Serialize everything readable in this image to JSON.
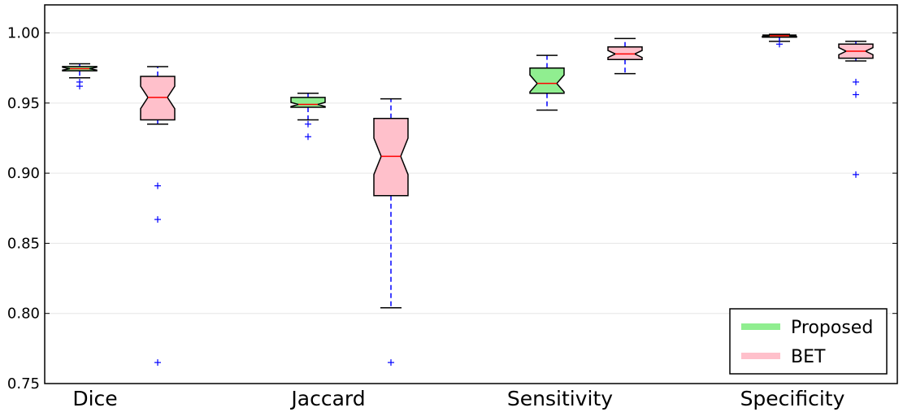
{
  "chart_data": {
    "type": "box",
    "categories": [
      "Dice",
      "Jaccard",
      "Sensitivity",
      "Specificity"
    ],
    "ylim": [
      0.75,
      1.02
    ],
    "yticks": [
      "0.75",
      "0.80",
      "0.85",
      "0.90",
      "0.95",
      "1.00"
    ],
    "grid": true,
    "legend_position": "bottom-right",
    "colors": {
      "Proposed": "#90ee90",
      "BET": "#ffc0cb",
      "median": "#ff0000",
      "whisker": "#0000ff",
      "flier": "#0000ff",
      "grid": "#e6e6e6"
    },
    "series": [
      {
        "name": "Proposed",
        "boxes": [
          {
            "whislo": 0.968,
            "q1": 0.973,
            "med": 0.9745,
            "q3": 0.976,
            "whishi": 0.978,
            "notch": [
              0.9735,
              0.9755
            ],
            "fliers": [
              0.965,
              0.962
            ]
          },
          {
            "whislo": 0.938,
            "q1": 0.947,
            "med": 0.949,
            "q3": 0.954,
            "whishi": 0.957,
            "notch": [
              0.9475,
              0.9505
            ],
            "fliers": [
              0.935,
              0.926
            ]
          },
          {
            "whislo": 0.945,
            "q1": 0.957,
            "med": 0.964,
            "q3": 0.975,
            "whishi": 0.984,
            "notch": [
              0.958,
              0.97
            ],
            "fliers": []
          },
          {
            "whislo": 0.994,
            "q1": 0.997,
            "med": 0.998,
            "q3": 0.9985,
            "whishi": 0.999,
            "notch": [
              0.9975,
              0.9985
            ],
            "fliers": [
              0.992
            ]
          }
        ]
      },
      {
        "name": "BET",
        "boxes": [
          {
            "whislo": 0.935,
            "q1": 0.938,
            "med": 0.954,
            "q3": 0.969,
            "whishi": 0.976,
            "notch": [
              0.946,
              0.962
            ],
            "fliers": [
              0.891,
              0.867,
              0.765
            ]
          },
          {
            "whislo": 0.804,
            "q1": 0.884,
            "med": 0.912,
            "q3": 0.939,
            "whishi": 0.953,
            "notch": [
              0.899,
              0.925
            ],
            "fliers": [
              0.765
            ]
          },
          {
            "whislo": 0.971,
            "q1": 0.981,
            "med": 0.985,
            "q3": 0.99,
            "whishi": 0.996,
            "notch": [
              0.9825,
              0.9875
            ],
            "fliers": []
          },
          {
            "whislo": 0.98,
            "q1": 0.982,
            "med": 0.987,
            "q3": 0.992,
            "whishi": 0.994,
            "notch": [
              0.9845,
              0.9895
            ],
            "fliers": [
              0.965,
              0.956,
              0.899
            ]
          }
        ]
      }
    ]
  }
}
